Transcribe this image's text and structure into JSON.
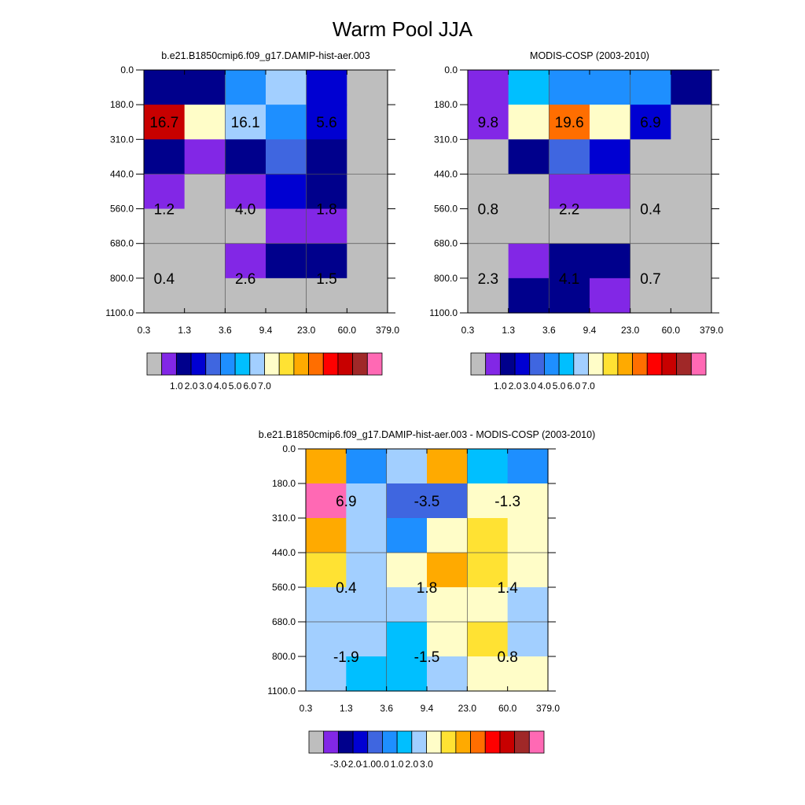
{
  "title": "Warm Pool JJA",
  "chart_data": [
    {
      "type": "heatmap",
      "title": "b.e21.B1850cmip6.f09_g17.DAMIP-hist-aer.003",
      "x_ticks": [
        "0.3",
        "1.3",
        "3.6",
        "9.4",
        "23.0",
        "60.0",
        "379.0"
      ],
      "y_ticks": [
        "0.0",
        "180.0",
        "310.0",
        "440.0",
        "560.0",
        "680.0",
        "800.0",
        "1100.0"
      ],
      "color_levels": [
        "#bebebe",
        "#8227e6",
        "#00008c",
        "#0000d2",
        "#3f66e0",
        "#1e8fff",
        "#00bfff",
        "#a2cfff",
        "#fffdc8",
        "#ffe233",
        "#ffaa00",
        "#ff6e00",
        "#ff0000",
        "#c80000",
        "#a02828",
        "#ff69b4"
      ],
      "colorbar_labels": [
        "1.0",
        "2.0",
        "3.0",
        "4.0",
        "5.0",
        "6.0",
        "7.0"
      ],
      "cell_levels": [
        [
          2,
          2,
          5,
          7,
          3,
          0
        ],
        [
          13,
          8,
          7,
          5,
          3,
          0
        ],
        [
          2,
          1,
          2,
          4,
          2,
          0
        ],
        [
          1,
          0,
          1,
          3,
          2,
          0
        ],
        [
          0,
          0,
          0,
          1,
          1,
          0
        ],
        [
          0,
          0,
          1,
          2,
          2,
          0
        ],
        [
          0,
          0,
          0,
          0,
          0,
          0
        ]
      ],
      "annotations": [
        {
          "col": 0.5,
          "row": 1.5,
          "text": "16.7"
        },
        {
          "col": 2.5,
          "row": 1.5,
          "text": "16.1"
        },
        {
          "col": 4.5,
          "row": 1.5,
          "text": "5.6"
        },
        {
          "col": 0.5,
          "row": 4,
          "text": "1.2"
        },
        {
          "col": 2.5,
          "row": 4,
          "text": "4.0"
        },
        {
          "col": 4.5,
          "row": 4,
          "text": "1.8"
        },
        {
          "col": 0.5,
          "row": 6,
          "text": "0.4"
        },
        {
          "col": 2.5,
          "row": 6,
          "text": "2.6"
        },
        {
          "col": 4.5,
          "row": 6,
          "text": "1.5"
        }
      ]
    },
    {
      "type": "heatmap",
      "title": "MODIS-COSP (2003-2010)",
      "x_ticks": [
        "0.3",
        "1.3",
        "3.6",
        "9.4",
        "23.0",
        "60.0",
        "379.0"
      ],
      "y_ticks": [
        "0.0",
        "180.0",
        "310.0",
        "440.0",
        "560.0",
        "680.0",
        "800.0",
        "1100.0"
      ],
      "color_levels": [
        "#bebebe",
        "#8227e6",
        "#00008c",
        "#0000d2",
        "#3f66e0",
        "#1e8fff",
        "#00bfff",
        "#a2cfff",
        "#fffdc8",
        "#ffe233",
        "#ffaa00",
        "#ff6e00",
        "#ff0000",
        "#c80000",
        "#a02828",
        "#ff69b4"
      ],
      "colorbar_labels": [
        "1.0",
        "2.0",
        "3.0",
        "4.0",
        "5.0",
        "6.0",
        "7.0"
      ],
      "cell_levels": [
        [
          1,
          6,
          5,
          5,
          5,
          2
        ],
        [
          1,
          8,
          11,
          8,
          3,
          0
        ],
        [
          0,
          2,
          4,
          3,
          0,
          0
        ],
        [
          0,
          0,
          1,
          1,
          0,
          0
        ],
        [
          0,
          0,
          0,
          0,
          0,
          0
        ],
        [
          0,
          1,
          2,
          2,
          0,
          0
        ],
        [
          0,
          2,
          2,
          1,
          0,
          0
        ]
      ],
      "annotations": [
        {
          "col": 0.5,
          "row": 1.5,
          "text": "9.8"
        },
        {
          "col": 2.5,
          "row": 1.5,
          "text": "19.6"
        },
        {
          "col": 4.5,
          "row": 1.5,
          "text": "6.9"
        },
        {
          "col": 0.5,
          "row": 4,
          "text": "0.8"
        },
        {
          "col": 2.5,
          "row": 4,
          "text": "2.2"
        },
        {
          "col": 4.5,
          "row": 4,
          "text": "0.4"
        },
        {
          "col": 0.5,
          "row": 6,
          "text": "2.3"
        },
        {
          "col": 2.5,
          "row": 6,
          "text": "4.1"
        },
        {
          "col": 4.5,
          "row": 6,
          "text": "0.7"
        }
      ]
    },
    {
      "type": "heatmap",
      "title": "b.e21.B1850cmip6.f09_g17.DAMIP-hist-aer.003 - MODIS-COSP (2003-2010)",
      "x_ticks": [
        "0.3",
        "1.3",
        "3.6",
        "9.4",
        "23.0",
        "60.0",
        "379.0"
      ],
      "y_ticks": [
        "0.0",
        "180.0",
        "310.0",
        "440.0",
        "560.0",
        "680.0",
        "800.0",
        "1100.0"
      ],
      "color_levels": [
        "#bebebe",
        "#8227e6",
        "#00008c",
        "#0000d2",
        "#3f66e0",
        "#1e8fff",
        "#00bfff",
        "#a2cfff",
        "#fffdc8",
        "#ffe233",
        "#ffaa00",
        "#ff6e00",
        "#ff0000",
        "#c80000",
        "#a02828",
        "#ff69b4"
      ],
      "colorbar_labels": [
        "-3.0",
        "-2.0",
        "-1.0",
        "0.0",
        "1.0",
        "2.0",
        "3.0"
      ],
      "cell_levels": [
        [
          10,
          5,
          7,
          10,
          6,
          5
        ],
        [
          15,
          7,
          4,
          4,
          8,
          8
        ],
        [
          10,
          7,
          5,
          8,
          9,
          8
        ],
        [
          9,
          7,
          8,
          10,
          9,
          8
        ],
        [
          7,
          7,
          7,
          8,
          8,
          7
        ],
        [
          7,
          7,
          6,
          8,
          9,
          7
        ],
        [
          7,
          6,
          6,
          7,
          8,
          8
        ]
      ],
      "annotations": [
        {
          "col": 1,
          "row": 1.5,
          "text": "6.9"
        },
        {
          "col": 3,
          "row": 1.5,
          "text": "-3.5"
        },
        {
          "col": 5,
          "row": 1.5,
          "text": "-1.3"
        },
        {
          "col": 1,
          "row": 4,
          "text": "0.4"
        },
        {
          "col": 3,
          "row": 4,
          "text": "1.8"
        },
        {
          "col": 5,
          "row": 4,
          "text": "1.4"
        },
        {
          "col": 1,
          "row": 6,
          "text": "-1.9"
        },
        {
          "col": 3,
          "row": 6,
          "text": "-1.5"
        },
        {
          "col": 5,
          "row": 6,
          "text": "0.8"
        }
      ]
    }
  ]
}
